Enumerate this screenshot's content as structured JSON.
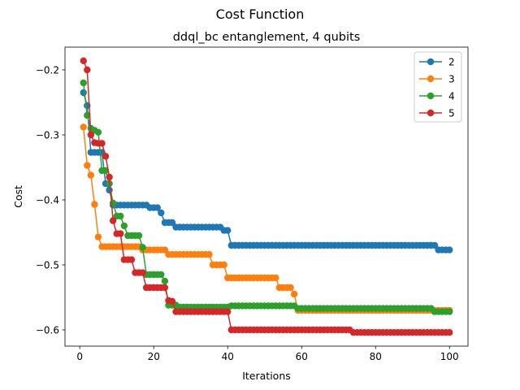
{
  "figure": {
    "suptitle": "Cost Function"
  },
  "chart_data": {
    "type": "line",
    "title": "ddql_bc entanglement, 4 qubits",
    "xlabel": "Iterations",
    "ylabel": "Cost",
    "xlim": [
      -4,
      105
    ],
    "ylim": [
      -0.625,
      -0.165
    ],
    "xticks": [
      0,
      20,
      40,
      60,
      80,
      100
    ],
    "xtick_labels": [
      "0",
      "20",
      "40",
      "60",
      "80",
      "100"
    ],
    "yticks": [
      -0.2,
      -0.3,
      -0.4,
      -0.5,
      -0.6
    ],
    "ytick_labels": [
      "−0.2",
      "−0.3",
      "−0.4",
      "−0.5",
      "−0.6"
    ],
    "legend_position": "upper right",
    "series": [
      {
        "name": "2",
        "color": "#1f77b4",
        "segments": [
          [
            1,
            -0.235
          ],
          [
            2,
            -0.255
          ],
          [
            3,
            -0.327
          ],
          [
            6,
            -0.327
          ],
          [
            7,
            -0.375
          ],
          [
            8,
            -0.385
          ],
          [
            9,
            -0.408
          ],
          [
            18,
            -0.408
          ],
          [
            19,
            -0.412
          ],
          [
            21,
            -0.412
          ],
          [
            22,
            -0.42
          ],
          [
            23,
            -0.435
          ],
          [
            25,
            -0.435
          ],
          [
            26,
            -0.442
          ],
          [
            38,
            -0.442
          ],
          [
            39,
            -0.447
          ],
          [
            40,
            -0.447
          ],
          [
            41,
            -0.47
          ],
          [
            96,
            -0.47
          ],
          [
            97,
            -0.477
          ],
          [
            100,
            -0.477
          ]
        ]
      },
      {
        "name": "3",
        "color": "#ff7f0e",
        "segments": [
          [
            1,
            -0.288
          ],
          [
            2,
            -0.347
          ],
          [
            3,
            -0.362
          ],
          [
            4,
            -0.407
          ],
          [
            5,
            -0.457
          ],
          [
            6,
            -0.472
          ],
          [
            16,
            -0.472
          ],
          [
            17,
            -0.477
          ],
          [
            23,
            -0.477
          ],
          [
            24,
            -0.484
          ],
          [
            35,
            -0.484
          ],
          [
            36,
            -0.5
          ],
          [
            39,
            -0.5
          ],
          [
            40,
            -0.52
          ],
          [
            53,
            -0.52
          ],
          [
            54,
            -0.535
          ],
          [
            57,
            -0.535
          ],
          [
            58,
            -0.545
          ],
          [
            59,
            -0.57
          ],
          [
            100,
            -0.57
          ]
        ]
      },
      {
        "name": "4",
        "color": "#2ca02c",
        "segments": [
          [
            1,
            -0.22
          ],
          [
            2,
            -0.27
          ],
          [
            3,
            -0.29
          ],
          [
            4,
            -0.293
          ],
          [
            5,
            -0.296
          ],
          [
            6,
            -0.355
          ],
          [
            7,
            -0.355
          ],
          [
            8,
            -0.375
          ],
          [
            9,
            -0.405
          ],
          [
            10,
            -0.425
          ],
          [
            11,
            -0.425
          ],
          [
            12,
            -0.44
          ],
          [
            13,
            -0.455
          ],
          [
            16,
            -0.455
          ],
          [
            17,
            -0.473
          ],
          [
            18,
            -0.515
          ],
          [
            22,
            -0.515
          ],
          [
            23,
            -0.525
          ],
          [
            24,
            -0.562
          ],
          [
            26,
            -0.562
          ],
          [
            27,
            -0.565
          ],
          [
            40,
            -0.565
          ],
          [
            41,
            -0.563
          ],
          [
            58,
            -0.563
          ],
          [
            59,
            -0.567
          ],
          [
            95,
            -0.567
          ],
          [
            96,
            -0.572
          ],
          [
            100,
            -0.572
          ]
        ]
      },
      {
        "name": "5",
        "color": "#d62728",
        "segments": [
          [
            1,
            -0.186
          ],
          [
            2,
            -0.2
          ],
          [
            3,
            -0.3
          ],
          [
            4,
            -0.312
          ],
          [
            5,
            -0.313
          ],
          [
            6,
            -0.313
          ],
          [
            7,
            -0.333
          ],
          [
            8,
            -0.365
          ],
          [
            9,
            -0.432
          ],
          [
            10,
            -0.452
          ],
          [
            11,
            -0.452
          ],
          [
            12,
            -0.492
          ],
          [
            14,
            -0.492
          ],
          [
            15,
            -0.512
          ],
          [
            17,
            -0.512
          ],
          [
            18,
            -0.535
          ],
          [
            23,
            -0.535
          ],
          [
            24,
            -0.555
          ],
          [
            25,
            -0.556
          ],
          [
            26,
            -0.572
          ],
          [
            39,
            -0.572
          ],
          [
            40,
            -0.572
          ],
          [
            41,
            -0.6
          ],
          [
            73,
            -0.6
          ],
          [
            74,
            -0.604
          ],
          [
            100,
            -0.604
          ]
        ]
      }
    ]
  }
}
